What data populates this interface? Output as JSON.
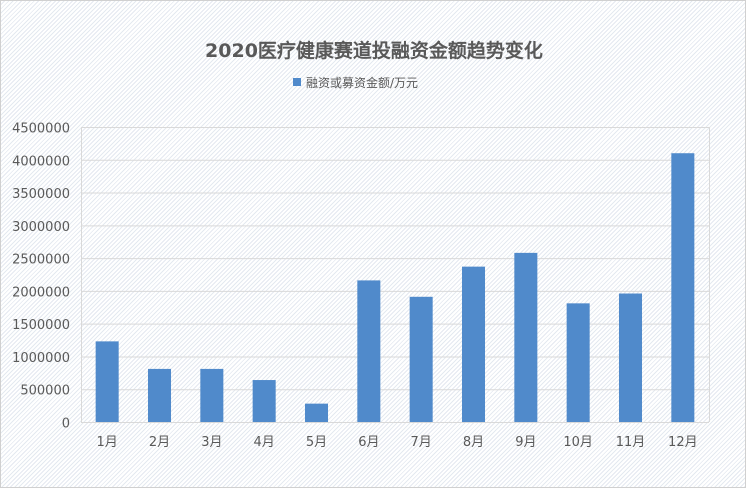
{
  "chart_data": {
    "type": "bar",
    "title": "2020医疗健康赛道投融资金额趋势变化",
    "legend": {
      "position": "top",
      "entries": [
        "融资或募资金额/万元"
      ]
    },
    "categories": [
      "1月",
      "2月",
      "3月",
      "4月",
      "5月",
      "6月",
      "7月",
      "8月",
      "9月",
      "10月",
      "11月",
      "12月"
    ],
    "series": [
      {
        "name": "融资或募资金额/万元",
        "color": "#508ACB",
        "values": [
          1230000,
          810000,
          810000,
          640000,
          280000,
          2160000,
          1910000,
          2370000,
          2580000,
          1810000,
          1960000,
          4100000
        ]
      }
    ],
    "ylim": [
      0,
      4500000
    ],
    "yticks": [
      "0",
      "500000",
      "1000000",
      "1500000",
      "2000000",
      "2500000",
      "3000000",
      "3500000",
      "4000000",
      "4500000"
    ],
    "grid": true,
    "xlabel": "",
    "ylabel": ""
  }
}
